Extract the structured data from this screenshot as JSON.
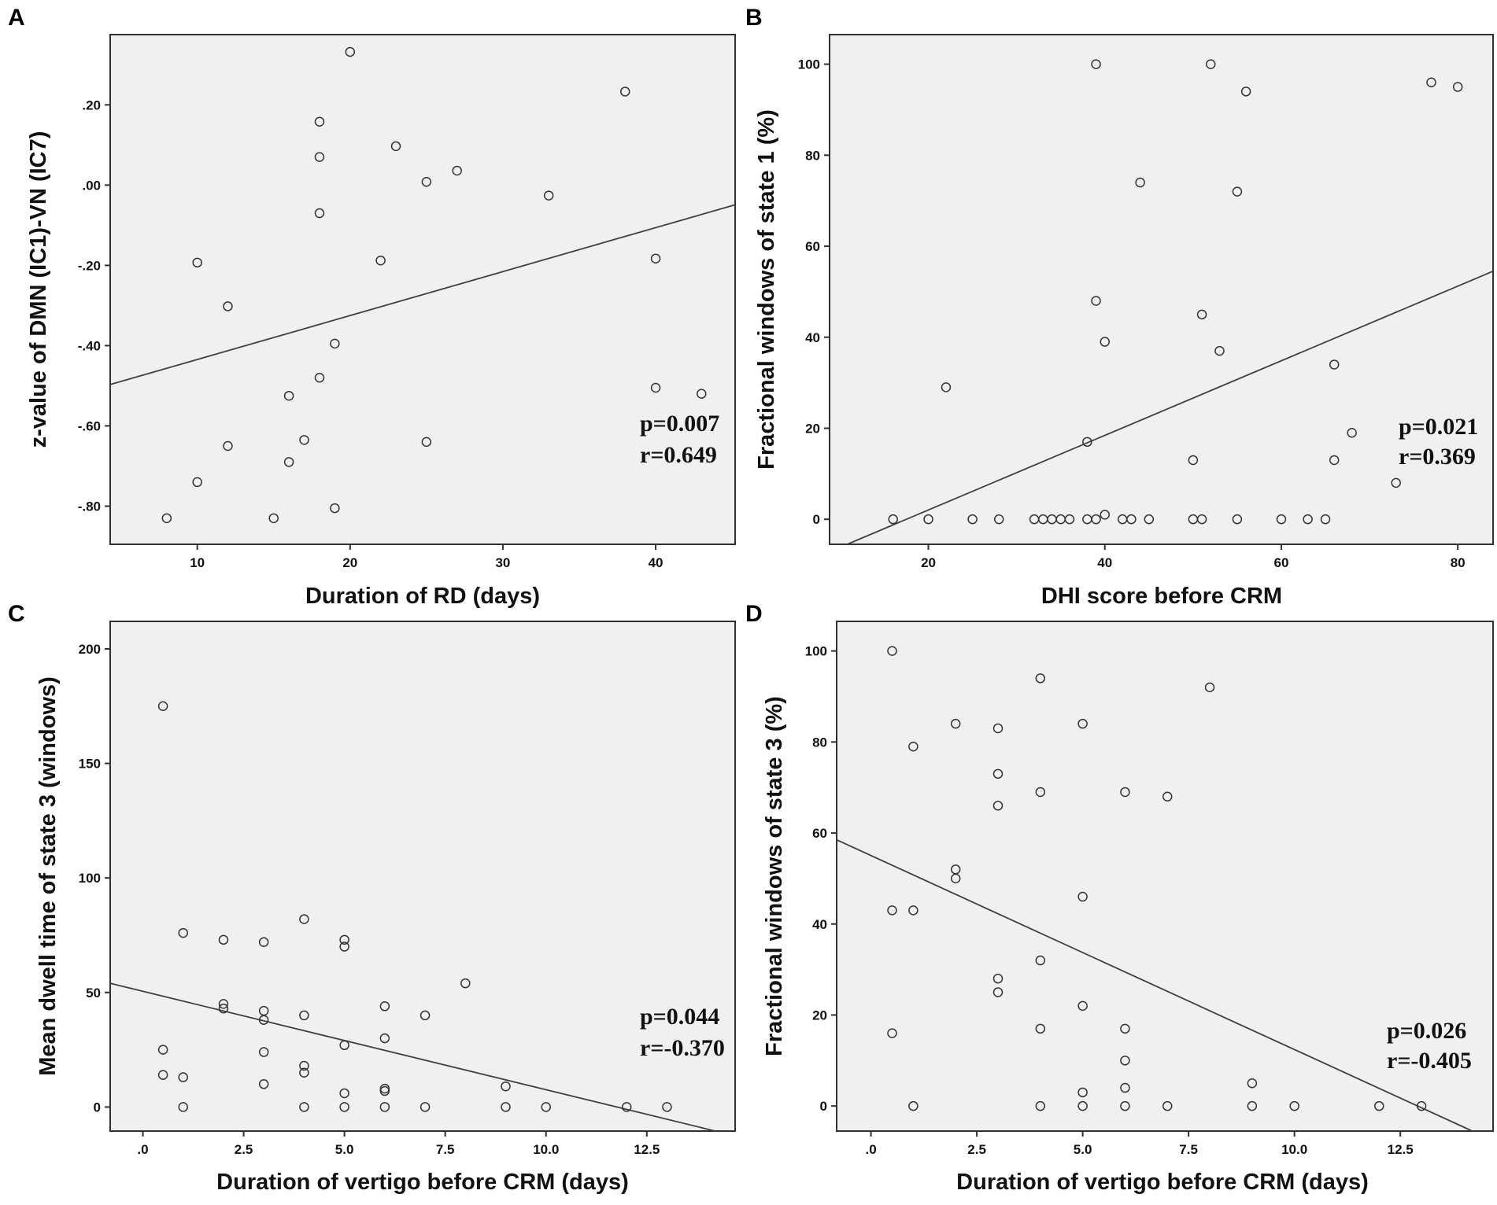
{
  "colors": {
    "plot_background": "#f0f0f0",
    "axis": "#303030",
    "marker": "#333333",
    "fit_line": "#404040"
  },
  "chart_data": [
    {
      "panel": "A",
      "type": "scatter",
      "xlabel": "Duration of RD (days)",
      "ylabel": "z-value of DMN (IC1)-VN (IC7)",
      "xlim": [
        4.3,
        45.2
      ],
      "ylim": [
        -0.895,
        0.375
      ],
      "xticks": [
        10,
        20,
        30,
        40
      ],
      "xtick_labels": [
        "10",
        "20",
        "30",
        "40"
      ],
      "yticks": [
        -0.8,
        -0.6,
        -0.4,
        -0.2,
        0.0,
        0.2
      ],
      "ytick_labels": [
        "-.80",
        "-.60",
        "-.40",
        "-.20",
        ".00",
        ".20"
      ],
      "points": [
        [
          8,
          -0.83
        ],
        [
          10,
          -0.74
        ],
        [
          10,
          -0.193
        ],
        [
          12,
          -0.65
        ],
        [
          12,
          -0.302
        ],
        [
          15,
          -0.83
        ],
        [
          16,
          -0.69
        ],
        [
          16,
          -0.525
        ],
        [
          17,
          -0.635
        ],
        [
          18,
          -0.48
        ],
        [
          18,
          -0.07
        ],
        [
          18,
          0.07
        ],
        [
          18,
          0.158
        ],
        [
          19,
          -0.805
        ],
        [
          19,
          -0.395
        ],
        [
          20,
          0.332
        ],
        [
          22,
          -0.188
        ],
        [
          23,
          0.097
        ],
        [
          25,
          -0.64
        ],
        [
          25,
          0.008
        ],
        [
          27,
          0.036
        ],
        [
          33,
          -0.026
        ],
        [
          38,
          0.233
        ],
        [
          40,
          -0.505
        ],
        [
          40,
          -0.183
        ],
        [
          43,
          -0.52
        ]
      ],
      "fit": {
        "x": [
          4.3,
          45.2
        ],
        "y": [
          -0.497,
          -0.049
        ]
      },
      "p_label": "p=0.007",
      "r_label": "r=0.649"
    },
    {
      "panel": "B",
      "type": "scatter",
      "xlabel": "DHI score before CRM",
      "ylabel": "Fractional windows of state 1 (%)",
      "xlim": [
        8.8,
        84.0
      ],
      "ylim": [
        -5.5,
        106.5
      ],
      "xticks": [
        20,
        40,
        60,
        80
      ],
      "xtick_labels": [
        "20",
        "40",
        "60",
        "80"
      ],
      "yticks": [
        0,
        20,
        40,
        60,
        80,
        100
      ],
      "ytick_labels": [
        "0",
        "20",
        "40",
        "60",
        "80",
        "100"
      ],
      "points": [
        [
          16,
          0
        ],
        [
          20,
          0
        ],
        [
          22,
          29
        ],
        [
          25,
          0
        ],
        [
          28,
          0
        ],
        [
          32,
          0
        ],
        [
          33,
          0
        ],
        [
          34,
          0
        ],
        [
          35,
          0
        ],
        [
          36,
          0
        ],
        [
          38,
          0
        ],
        [
          38,
          17
        ],
        [
          39,
          0
        ],
        [
          39,
          48
        ],
        [
          39,
          100
        ],
        [
          40,
          1
        ],
        [
          40,
          39
        ],
        [
          42,
          0
        ],
        [
          43,
          0
        ],
        [
          44,
          74
        ],
        [
          45,
          0
        ],
        [
          50,
          0
        ],
        [
          50,
          13
        ],
        [
          51,
          0
        ],
        [
          51,
          45
        ],
        [
          52,
          100
        ],
        [
          53,
          37
        ],
        [
          55,
          0
        ],
        [
          55,
          72
        ],
        [
          56,
          94
        ],
        [
          60,
          0
        ],
        [
          63,
          0
        ],
        [
          65,
          0
        ],
        [
          66,
          13
        ],
        [
          66,
          34
        ],
        [
          68,
          19
        ],
        [
          73,
          8
        ],
        [
          77,
          96
        ],
        [
          80,
          95
        ]
      ],
      "fit": {
        "x": [
          10.8,
          84.0
        ],
        "y": [
          -5.5,
          54.5
        ]
      },
      "p_label": "p=0.021",
      "r_label": "r=0.369"
    },
    {
      "panel": "C",
      "type": "scatter",
      "xlabel": "Duration of vertigo before CRM (days)",
      "ylabel": "Mean dwell time of state 3 (windows)",
      "xlim": [
        -0.81,
        14.69
      ],
      "ylim": [
        -10.5,
        212
      ],
      "xticks": [
        0,
        2.5,
        5,
        7.5,
        10,
        12.5
      ],
      "xtick_labels": [
        ".0",
        "2.5",
        "5.0",
        "7.5",
        "10.0",
        "12.5"
      ],
      "yticks": [
        0,
        50,
        100,
        150,
        200
      ],
      "ytick_labels": [
        "0",
        "50",
        "100",
        "150",
        "200"
      ],
      "points": [
        [
          0.5,
          175
        ],
        [
          0.5,
          25
        ],
        [
          0.5,
          14
        ],
        [
          1,
          76
        ],
        [
          1,
          13
        ],
        [
          1,
          0
        ],
        [
          2,
          73
        ],
        [
          2,
          45
        ],
        [
          2,
          43
        ],
        [
          3,
          72
        ],
        [
          3,
          42
        ],
        [
          3,
          38
        ],
        [
          3,
          24
        ],
        [
          3,
          10
        ],
        [
          4,
          82
        ],
        [
          4,
          40
        ],
        [
          4,
          18
        ],
        [
          4,
          15
        ],
        [
          4,
          0
        ],
        [
          5,
          73
        ],
        [
          5,
          70
        ],
        [
          5,
          27
        ],
        [
          5,
          6
        ],
        [
          5,
          0
        ],
        [
          6,
          44
        ],
        [
          6,
          30
        ],
        [
          6,
          8
        ],
        [
          6,
          7
        ],
        [
          6,
          0
        ],
        [
          7,
          40
        ],
        [
          7,
          0
        ],
        [
          8,
          54
        ],
        [
          9,
          9
        ],
        [
          9,
          0
        ],
        [
          10,
          0
        ],
        [
          12,
          0
        ],
        [
          13,
          0
        ]
      ],
      "fit": {
        "x": [
          -0.81,
          14.2
        ],
        "y": [
          54,
          -10.5
        ]
      },
      "p_label": "p=0.044",
      "r_label": "r=-0.370"
    },
    {
      "panel": "D",
      "type": "scatter",
      "xlabel": "Duration of vertigo before CRM (days)",
      "ylabel": "Fractional windows of state 3 (%)",
      "xlim": [
        -0.81,
        14.69
      ],
      "ylim": [
        -5.5,
        106.5
      ],
      "xticks": [
        0,
        2.5,
        5,
        7.5,
        10,
        12.5
      ],
      "xtick_labels": [
        ".0",
        "2.5",
        "5.0",
        "7.5",
        "10.0",
        "12.5"
      ],
      "yticks": [
        0,
        20,
        40,
        60,
        80,
        100
      ],
      "ytick_labels": [
        "0",
        "20",
        "40",
        "60",
        "80",
        "100"
      ],
      "points": [
        [
          0.5,
          100
        ],
        [
          0.5,
          43
        ],
        [
          0.5,
          16
        ],
        [
          1,
          79
        ],
        [
          1,
          43
        ],
        [
          1,
          0
        ],
        [
          2,
          84
        ],
        [
          2,
          52
        ],
        [
          2,
          50
        ],
        [
          3,
          83
        ],
        [
          3,
          73
        ],
        [
          3,
          66
        ],
        [
          3,
          28
        ],
        [
          3,
          25
        ],
        [
          4,
          94
        ],
        [
          4,
          69
        ],
        [
          4,
          32
        ],
        [
          4,
          17
        ],
        [
          4,
          0
        ],
        [
          5,
          84
        ],
        [
          5,
          46
        ],
        [
          5,
          22
        ],
        [
          5,
          3
        ],
        [
          5,
          0
        ],
        [
          6,
          69
        ],
        [
          6,
          17
        ],
        [
          6,
          10
        ],
        [
          6,
          4
        ],
        [
          6,
          0
        ],
        [
          7,
          68
        ],
        [
          7,
          0
        ],
        [
          8,
          92
        ],
        [
          9,
          5
        ],
        [
          9,
          0
        ],
        [
          10,
          0
        ],
        [
          12,
          0
        ],
        [
          13,
          0
        ]
      ],
      "fit": {
        "x": [
          -0.81,
          14.2
        ],
        "y": [
          58.5,
          -5.5
        ]
      },
      "p_label": "p=0.026",
      "r_label": "r=-0.405"
    }
  ]
}
